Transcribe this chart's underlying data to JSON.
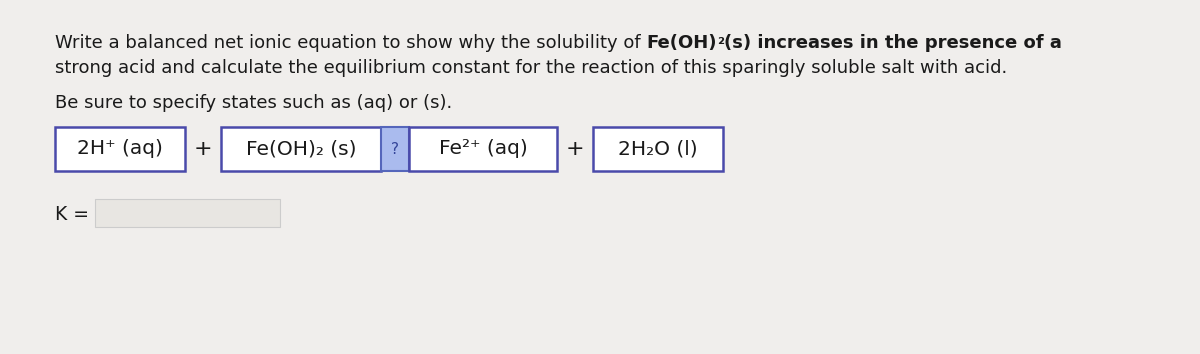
{
  "background_color": "#f0eeec",
  "text_color": "#1a1a1a",
  "line1_normal": "Write a balanced net ionic equation to show why the solubility of ",
  "line1_bold": "Fe(OH)",
  "line1_bold_sub": "₂",
  "line1_bold_rest": "(s) increases in the presence of a",
  "line2": "strong acid and calculate the equilibrium constant for the reaction of this sparingly soluble salt with acid.",
  "subtitle": "Be sure to specify states such as (aq) or (s).",
  "box_border_color": "#4a4aaa",
  "box_fill_color": "#ffffff",
  "arrow_box_fill": "#aabbee",
  "arrow_box_border": "#5566bb",
  "arrow_text": "?",
  "k_label": "K =",
  "k_box_fill": "#e8e6e2",
  "k_box_border": "#cccccc",
  "font_size_title": 13.0,
  "font_size_eq": 14.5,
  "font_size_k": 13.5
}
